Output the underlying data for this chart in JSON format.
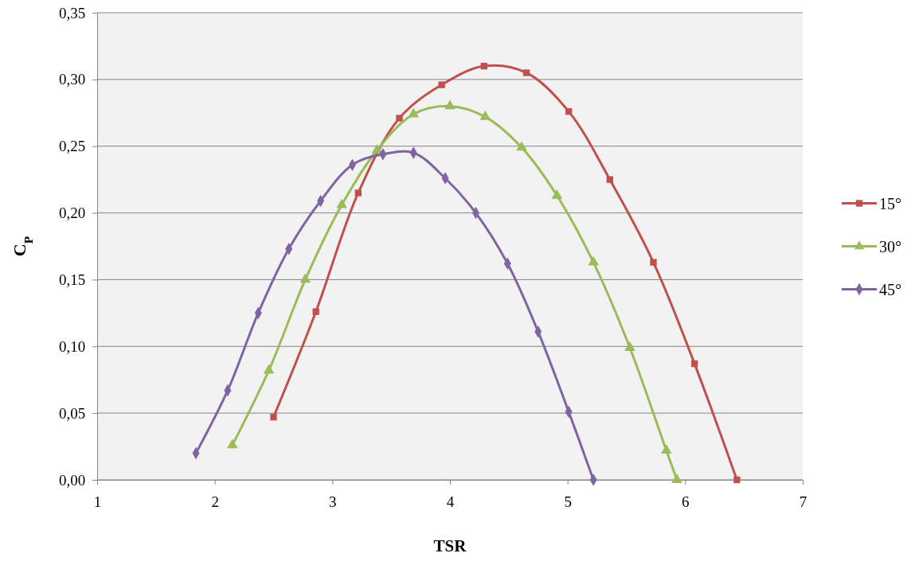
{
  "chart_data": {
    "type": "line",
    "xlabel": "TSR",
    "ylabel": "C$_{P}$",
    "xlim": [
      1,
      7
    ],
    "xticks": [
      1,
      2,
      3,
      4,
      5,
      6,
      7
    ],
    "ylim": [
      0,
      0.35
    ],
    "yticks": [
      {
        "value": 0,
        "label": "0,00"
      },
      {
        "value": 0.05,
        "label": "0,05"
      },
      {
        "value": 0.1,
        "label": "0,10"
      },
      {
        "value": 0.15,
        "label": "0,15"
      },
      {
        "value": 0.2,
        "label": "0,20"
      },
      {
        "value": 0.25,
        "label": "0,25"
      },
      {
        "value": 0.3,
        "label": "0,30"
      },
      {
        "value": 0.35,
        "label": "0,35"
      }
    ],
    "grid": "y",
    "legend": "right",
    "line_style": "solid",
    "series": [
      {
        "name": "15°",
        "color": "#c0504d",
        "marker": "square",
        "x": [
          2.5,
          2.86,
          3.22,
          3.57,
          3.93,
          4.29,
          4.65,
          5.01,
          5.36,
          5.73,
          6.08,
          6.44
        ],
        "values": [
          0.047,
          0.126,
          0.215,
          0.271,
          0.296,
          0.31,
          0.305,
          0.276,
          0.225,
          0.163,
          0.087,
          0
        ]
      },
      {
        "name": "30°",
        "color": "#9bbb59",
        "marker": "triangle",
        "x": [
          2.15,
          2.46,
          2.77,
          3.08,
          3.38,
          3.69,
          4.0,
          4.3,
          4.61,
          4.91,
          5.22,
          5.53,
          5.84,
          5.93
        ],
        "values": [
          0.026,
          0.082,
          0.15,
          0.206,
          0.247,
          0.274,
          0.28,
          0.272,
          0.249,
          0.213,
          0.163,
          0.099,
          0.022,
          0
        ]
      },
      {
        "name": "45°",
        "color": "#8064a2",
        "marker": "diamond",
        "x": [
          1.84,
          2.11,
          2.37,
          2.63,
          2.9,
          3.17,
          3.43,
          3.69,
          3.96,
          4.22,
          4.49,
          4.75,
          5.01,
          5.22
        ],
        "values": [
          0.02,
          0.067,
          0.125,
          0.173,
          0.209,
          0.236,
          0.244,
          0.245,
          0.226,
          0.2,
          0.162,
          0.111,
          0.051,
          0
        ]
      }
    ]
  }
}
